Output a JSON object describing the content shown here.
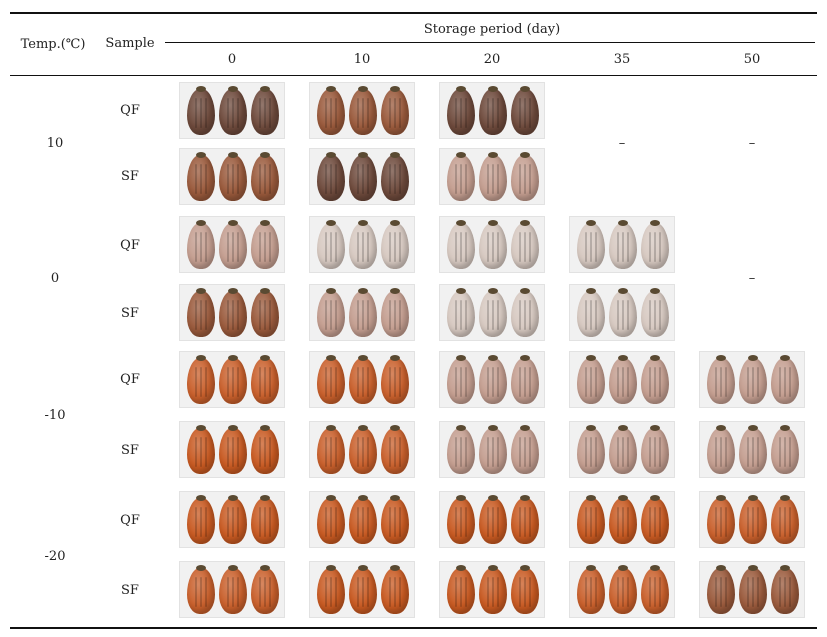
{
  "header": {
    "temp_label": "Temp.(℃)",
    "sample_label": "Sample",
    "storage_label": "Storage period (day)",
    "days": [
      "0",
      "10",
      "20",
      "35",
      "50"
    ]
  },
  "temperatures": [
    "10",
    "0",
    "-10",
    "-20"
  ],
  "samples": [
    "QF",
    "SF",
    "QF",
    "SF",
    "QF",
    "SF",
    "QF",
    "SF"
  ],
  "dash": "–",
  "colors": {
    "dark_brown": "#6e4a3c",
    "brown_orange": "#9a5a3c",
    "pale_white": "#d7c9c1",
    "pink_white": "#c49e90",
    "orange": "#c9602c",
    "deep_orange": "#c85a22"
  }
}
